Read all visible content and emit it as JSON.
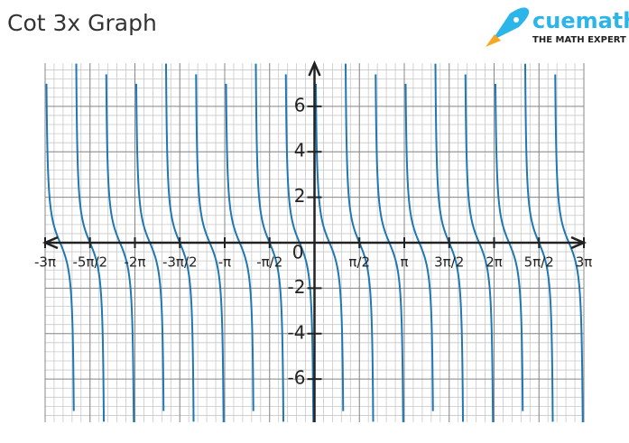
{
  "chart_data": {
    "type": "function",
    "title": "Cot 3x Graph",
    "brand": {
      "name": "cuemath",
      "tagline": "THE MATH EXPERT"
    },
    "color": "#1f78b4",
    "grid": true,
    "xlim": [
      -9.4248,
      9.4248
    ],
    "ylim": [
      -7.9,
      7.9
    ],
    "xticks": [
      {
        "value": -9.4248,
        "label": "-3π"
      },
      {
        "value": -7.854,
        "label": "-5π/2"
      },
      {
        "value": -6.2832,
        "label": "-2π"
      },
      {
        "value": -4.7124,
        "label": "-3π/2"
      },
      {
        "value": -3.1416,
        "label": "-π"
      },
      {
        "value": -1.5708,
        "label": "-π/2"
      },
      {
        "value": 1.5708,
        "label": "π/2"
      },
      {
        "value": 3.1416,
        "label": "π"
      },
      {
        "value": 4.7124,
        "label": "3π/2"
      },
      {
        "value": 6.2832,
        "label": "2π"
      },
      {
        "value": 7.854,
        "label": "5π/2"
      },
      {
        "value": 9.4248,
        "label": "3π"
      }
    ],
    "yticks": [
      -6,
      -4,
      -2,
      2,
      4,
      6
    ],
    "origin_label": "0"
  }
}
